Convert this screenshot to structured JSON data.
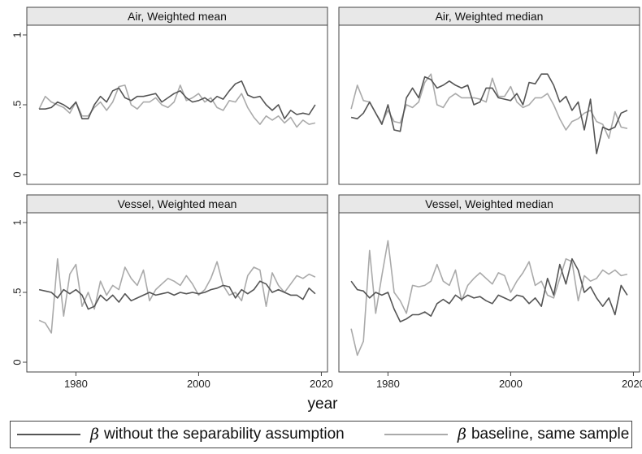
{
  "figure": {
    "xlabel": "year",
    "legend": {
      "position": "bottom",
      "items": [
        {
          "symbol": "β",
          "label": "without the separability assumption",
          "color": "#555555"
        },
        {
          "symbol": "β",
          "label": "baseline, same sample",
          "color": "#aaaaaa"
        }
      ]
    }
  },
  "chart_data": [
    {
      "type": "line",
      "title": "Air, Weighted mean",
      "xlim": [
        1972,
        2021
      ],
      "ylim": [
        0,
        1
      ],
      "xticks": [
        1980,
        2000,
        2020
      ],
      "yticks": [
        0,
        0.5,
        1
      ],
      "ytick_labels": [
        "0",
        ".5",
        "1"
      ],
      "grid": false,
      "x": [
        1974,
        1975,
        1976,
        1977,
        1978,
        1979,
        1980,
        1981,
        1982,
        1983,
        1984,
        1985,
        1986,
        1987,
        1988,
        1989,
        1990,
        1991,
        1992,
        1993,
        1994,
        1995,
        1996,
        1997,
        1998,
        1999,
        2000,
        2001,
        2002,
        2003,
        2004,
        2005,
        2006,
        2007,
        2008,
        2009,
        2010,
        2011,
        2012,
        2013,
        2014,
        2015,
        2016,
        2017,
        2018,
        2019
      ],
      "series": [
        {
          "name": "β without the separability assumption",
          "color": "#555555",
          "values": [
            0.47,
            0.47,
            0.48,
            0.52,
            0.5,
            0.47,
            0.52,
            0.4,
            0.4,
            0.5,
            0.56,
            0.52,
            0.6,
            0.62,
            0.55,
            0.53,
            0.56,
            0.56,
            0.57,
            0.58,
            0.52,
            0.55,
            0.58,
            0.6,
            0.55,
            0.52,
            0.53,
            0.55,
            0.52,
            0.56,
            0.54,
            0.6,
            0.65,
            0.67,
            0.57,
            0.55,
            0.56,
            0.5,
            0.46,
            0.5,
            0.4,
            0.46,
            0.43,
            0.44,
            0.43,
            0.5
          ]
        },
        {
          "name": "β baseline, same sample",
          "color": "#aaaaaa",
          "values": [
            0.47,
            0.56,
            0.52,
            0.5,
            0.48,
            0.44,
            0.52,
            0.42,
            0.42,
            0.48,
            0.52,
            0.46,
            0.52,
            0.63,
            0.64,
            0.5,
            0.47,
            0.52,
            0.52,
            0.55,
            0.5,
            0.48,
            0.52,
            0.64,
            0.53,
            0.55,
            0.58,
            0.52,
            0.55,
            0.48,
            0.46,
            0.53,
            0.52,
            0.58,
            0.48,
            0.41,
            0.36,
            0.42,
            0.39,
            0.42,
            0.37,
            0.41,
            0.34,
            0.39,
            0.36,
            0.37
          ]
        }
      ]
    },
    {
      "type": "line",
      "title": "Air, Weighted median",
      "xlim": [
        1972,
        2021
      ],
      "ylim": [
        0,
        1
      ],
      "xticks": [
        1980,
        2000,
        2020
      ],
      "yticks": [
        0,
        0.5,
        1
      ],
      "ytick_labels": [
        "0",
        ".5",
        "1"
      ],
      "grid": false,
      "x": [
        1974,
        1975,
        1976,
        1977,
        1978,
        1979,
        1980,
        1981,
        1982,
        1983,
        1984,
        1985,
        1986,
        1987,
        1988,
        1989,
        1990,
        1991,
        1992,
        1993,
        1994,
        1995,
        1996,
        1997,
        1998,
        1999,
        2000,
        2001,
        2002,
        2003,
        2004,
        2005,
        2006,
        2007,
        2008,
        2009,
        2010,
        2011,
        2012,
        2013,
        2014,
        2015,
        2016,
        2017,
        2018,
        2019
      ],
      "series": [
        {
          "name": "β without the separability assumption",
          "color": "#555555",
          "values": [
            0.41,
            0.4,
            0.44,
            0.52,
            0.44,
            0.36,
            0.5,
            0.32,
            0.31,
            0.55,
            0.62,
            0.55,
            0.7,
            0.68,
            0.62,
            0.64,
            0.67,
            0.64,
            0.62,
            0.64,
            0.5,
            0.52,
            0.62,
            0.62,
            0.55,
            0.54,
            0.53,
            0.58,
            0.5,
            0.66,
            0.65,
            0.72,
            0.72,
            0.64,
            0.52,
            0.56,
            0.46,
            0.52,
            0.32,
            0.54,
            0.15,
            0.34,
            0.32,
            0.34,
            0.44,
            0.46
          ]
        },
        {
          "name": "β baseline, same sample",
          "color": "#aaaaaa",
          "values": [
            0.47,
            0.64,
            0.53,
            0.52,
            0.44,
            0.37,
            0.46,
            0.38,
            0.37,
            0.5,
            0.48,
            0.52,
            0.66,
            0.72,
            0.5,
            0.48,
            0.55,
            0.58,
            0.55,
            0.55,
            0.55,
            0.54,
            0.52,
            0.69,
            0.56,
            0.56,
            0.63,
            0.52,
            0.48,
            0.5,
            0.55,
            0.55,
            0.58,
            0.5,
            0.4,
            0.32,
            0.38,
            0.4,
            0.44,
            0.46,
            0.38,
            0.36,
            0.26,
            0.45,
            0.34,
            0.33
          ]
        }
      ]
    },
    {
      "type": "line",
      "title": "Vessel, Weighted mean",
      "xlim": [
        1972,
        2021
      ],
      "ylim": [
        0,
        1
      ],
      "xticks": [
        1980,
        2000,
        2020
      ],
      "yticks": [
        0,
        0.5,
        1
      ],
      "ytick_labels": [
        "0",
        ".5",
        "1"
      ],
      "grid": false,
      "x": [
        1974,
        1975,
        1976,
        1977,
        1978,
        1979,
        1980,
        1981,
        1982,
        1983,
        1984,
        1985,
        1986,
        1987,
        1988,
        1989,
        1990,
        1991,
        1992,
        1993,
        1994,
        1995,
        1996,
        1997,
        1998,
        1999,
        2000,
        2001,
        2002,
        2003,
        2004,
        2005,
        2006,
        2007,
        2008,
        2009,
        2010,
        2011,
        2012,
        2013,
        2014,
        2015,
        2016,
        2017,
        2018,
        2019
      ],
      "series": [
        {
          "name": "β without the separability assumption",
          "color": "#555555",
          "values": [
            0.52,
            0.51,
            0.5,
            0.46,
            0.52,
            0.49,
            0.52,
            0.48,
            0.38,
            0.4,
            0.48,
            0.44,
            0.48,
            0.43,
            0.49,
            0.44,
            0.46,
            0.48,
            0.5,
            0.48,
            0.49,
            0.5,
            0.48,
            0.5,
            0.49,
            0.5,
            0.49,
            0.5,
            0.52,
            0.53,
            0.55,
            0.54,
            0.46,
            0.52,
            0.49,
            0.52,
            0.58,
            0.56,
            0.5,
            0.52,
            0.5,
            0.48,
            0.48,
            0.45,
            0.53,
            0.49
          ]
        },
        {
          "name": "β baseline, same sample",
          "color": "#aaaaaa",
          "values": [
            0.3,
            0.28,
            0.21,
            0.74,
            0.33,
            0.63,
            0.7,
            0.4,
            0.5,
            0.38,
            0.58,
            0.48,
            0.55,
            0.52,
            0.68,
            0.6,
            0.55,
            0.66,
            0.44,
            0.52,
            0.56,
            0.6,
            0.58,
            0.55,
            0.62,
            0.56,
            0.48,
            0.52,
            0.6,
            0.72,
            0.55,
            0.48,
            0.5,
            0.44,
            0.62,
            0.68,
            0.66,
            0.4,
            0.64,
            0.55,
            0.5,
            0.56,
            0.62,
            0.6,
            0.63,
            0.61
          ]
        }
      ]
    },
    {
      "type": "line",
      "title": "Vessel, Weighted median",
      "xlim": [
        1972,
        2021
      ],
      "ylim": [
        0,
        1
      ],
      "xticks": [
        1980,
        2000,
        2020
      ],
      "yticks": [
        0,
        0.5,
        1
      ],
      "ytick_labels": [
        "0",
        ".5",
        "1"
      ],
      "grid": false,
      "x": [
        1974,
        1975,
        1976,
        1977,
        1978,
        1979,
        1980,
        1981,
        1982,
        1983,
        1984,
        1985,
        1986,
        1987,
        1988,
        1989,
        1990,
        1991,
        1992,
        1993,
        1994,
        1995,
        1996,
        1997,
        1998,
        1999,
        2000,
        2001,
        2002,
        2003,
        2004,
        2005,
        2006,
        2007,
        2008,
        2009,
        2010,
        2011,
        2012,
        2013,
        2014,
        2015,
        2016,
        2017,
        2018,
        2019
      ],
      "series": [
        {
          "name": "β without the separability assumption",
          "color": "#555555",
          "values": [
            0.58,
            0.52,
            0.51,
            0.46,
            0.5,
            0.48,
            0.5,
            0.38,
            0.29,
            0.31,
            0.34,
            0.34,
            0.36,
            0.33,
            0.42,
            0.45,
            0.42,
            0.48,
            0.45,
            0.48,
            0.46,
            0.47,
            0.44,
            0.42,
            0.48,
            0.46,
            0.44,
            0.48,
            0.47,
            0.42,
            0.46,
            0.4,
            0.6,
            0.48,
            0.7,
            0.56,
            0.74,
            0.66,
            0.5,
            0.54,
            0.46,
            0.4,
            0.46,
            0.34,
            0.55,
            0.48
          ]
        },
        {
          "name": "β baseline, same sample",
          "color": "#aaaaaa",
          "values": [
            0.24,
            0.05,
            0.15,
            0.8,
            0.35,
            0.62,
            0.87,
            0.5,
            0.44,
            0.35,
            0.55,
            0.54,
            0.55,
            0.58,
            0.7,
            0.58,
            0.55,
            0.66,
            0.44,
            0.55,
            0.6,
            0.64,
            0.6,
            0.56,
            0.64,
            0.62,
            0.5,
            0.58,
            0.64,
            0.72,
            0.55,
            0.58,
            0.48,
            0.46,
            0.6,
            0.74,
            0.72,
            0.44,
            0.62,
            0.58,
            0.6,
            0.66,
            0.63,
            0.66,
            0.62,
            0.63
          ]
        }
      ]
    }
  ]
}
